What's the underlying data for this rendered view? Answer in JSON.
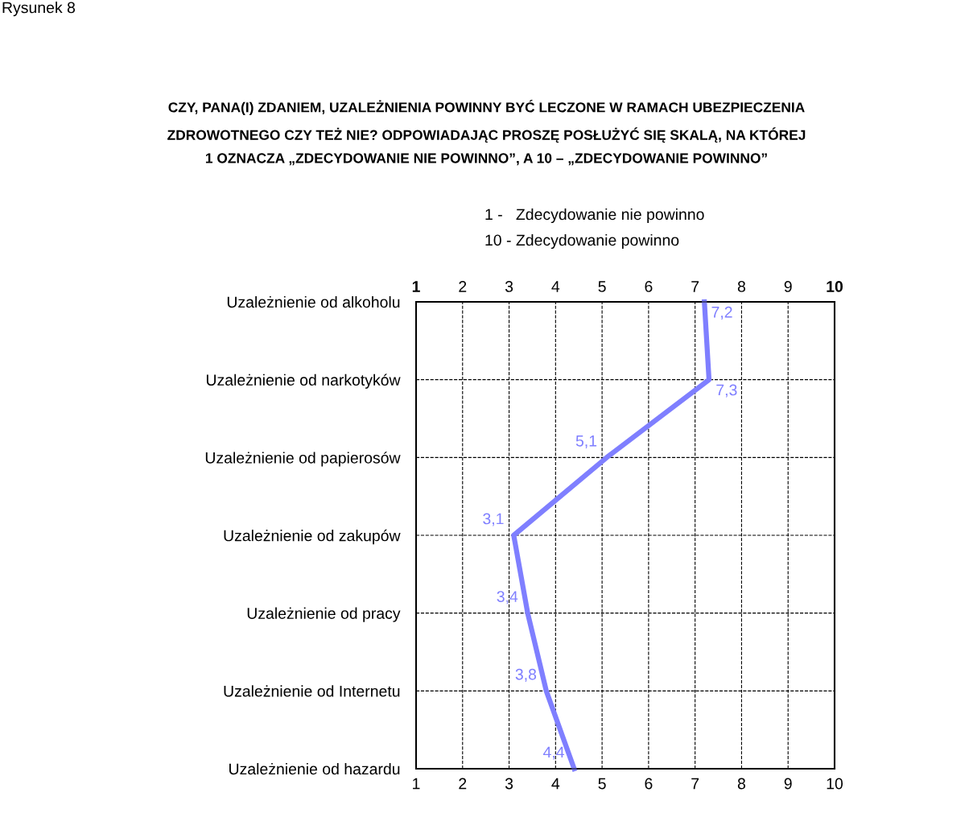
{
  "chart_data": {
    "type": "line",
    "orientation": "horizontal",
    "title": "CZY, PANA(I) ZDANIEM, UZALEŻNIENIA POWINNY BYĆ LECZONE W RAMACH UBEZPIECZENIA\nZDROWOTNEGO CZY TEŻ NIE? ODPOWIADAJĄC PROSZĘ POSŁUŻYĆ SIĘ SKALĄ, NA KTÓREJ\n1 OZNACZA „ZDECYDOWANIE NIE POWINNO”, A 10 – „ZDECYDOWANIE POWINNO”",
    "annotations": [
      "Rysunek 8",
      "1 -   Zdecydowanie nie powinno",
      "10 - Zdecydowanie powinno"
    ],
    "categories": [
      "Uzależnienie od alkoholu",
      "Uzależnienie od narkotyków",
      "Uzależnienie od papierosów",
      "Uzależnienie od zakupów",
      "Uzależnienie od pracy",
      "Uzależnienie od Internetu",
      "Uzależnienie od hazardu"
    ],
    "series": [
      {
        "color": "#7f7fff",
        "values": [
          7.2,
          7.3,
          5.1,
          3.1,
          3.4,
          3.8,
          4.4
        ],
        "value_labels": [
          "7,2",
          "7,3",
          "5,1",
          "3,1",
          "3,4",
          "3,8",
          "4,4"
        ]
      }
    ],
    "xlim": [
      1,
      10
    ],
    "xticks": [
      1,
      2,
      3,
      4,
      5,
      6,
      7,
      8,
      9,
      10
    ],
    "x2lim": [
      1,
      10
    ],
    "x2ticks": [
      1,
      2,
      3,
      4,
      5,
      6,
      7,
      8,
      9,
      10
    ],
    "grid": true
  }
}
